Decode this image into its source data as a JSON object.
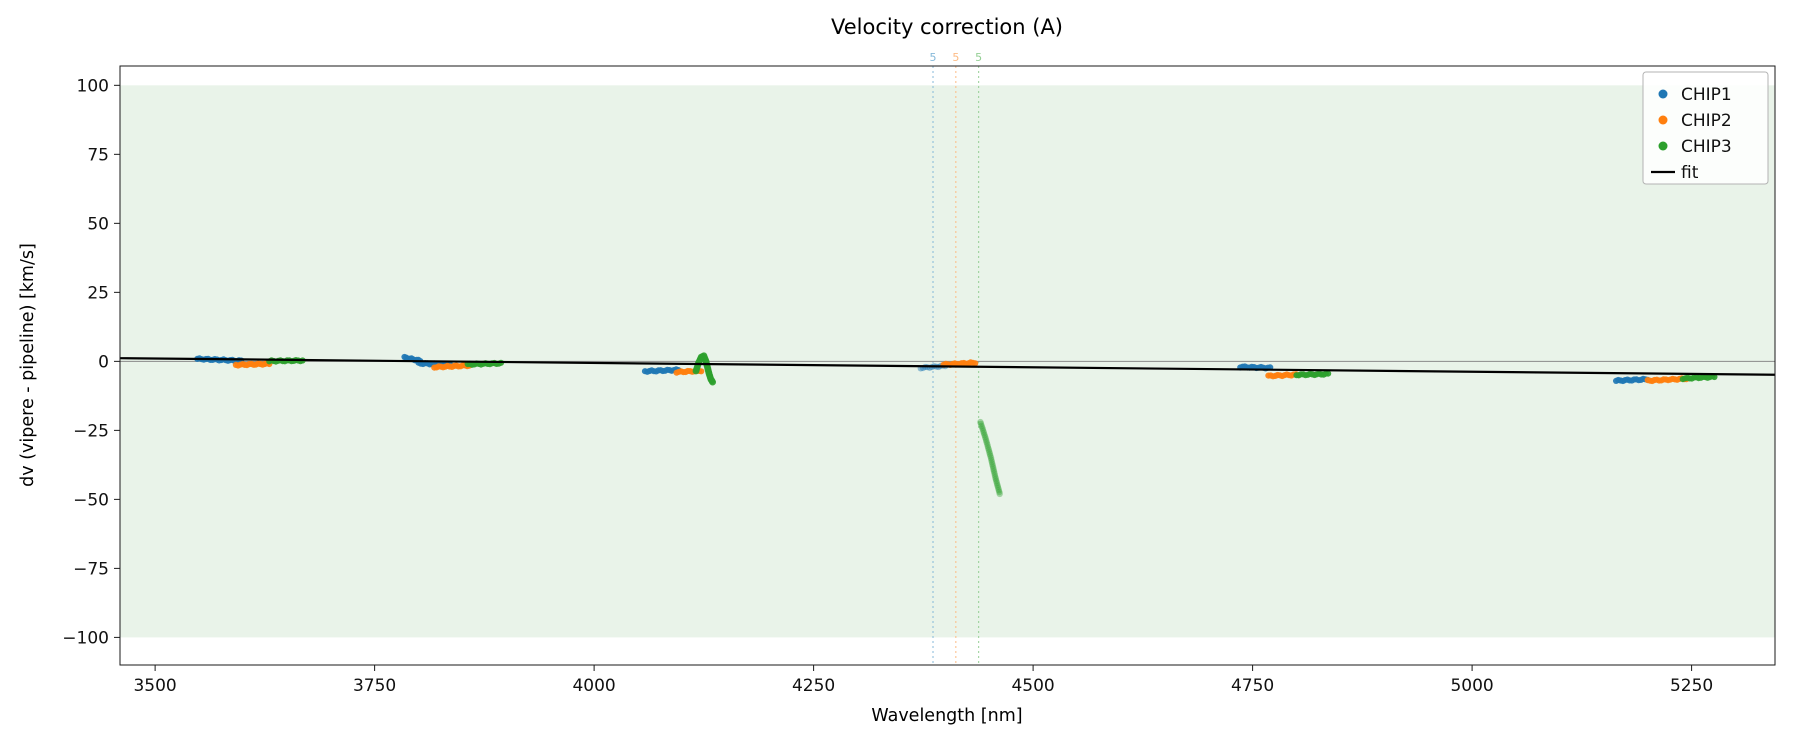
{
  "chart_data": {
    "type": "scatter",
    "title": "Velocity correction (A)",
    "xlabel": "Wavelength [nm]",
    "ylabel": "dv (vipere - pipeline) [km/s]",
    "xlim": [
      3460,
      5345
    ],
    "ylim": [
      -110,
      107
    ],
    "xticks": [
      3500,
      3750,
      4000,
      4250,
      4500,
      4750,
      5000,
      5250
    ],
    "yticks": [
      -100,
      -75,
      -50,
      -25,
      0,
      25,
      50,
      75,
      100
    ],
    "grid": false,
    "band": {
      "y": [
        -100,
        100
      ],
      "color": "#e9f3e9"
    },
    "zero_line": {
      "y": 0,
      "color": "#8a8a8a"
    },
    "vlines": [
      {
        "x": 4386,
        "label": "5",
        "color": "#86b9d9"
      },
      {
        "x": 4412,
        "label": "5",
        "color": "#fdbb84"
      },
      {
        "x": 4438,
        "label": "5",
        "color": "#94cf94"
      }
    ],
    "fit": {
      "x": [
        3460,
        5345
      ],
      "y": [
        1.15,
        -4.85
      ],
      "color": "#000000"
    },
    "series": [
      {
        "name": "CHIP1",
        "color": "#1f77b4",
        "segments": [
          {
            "x": [
              3548,
              3598
            ],
            "y": [
              0.9,
              0.2
            ]
          },
          {
            "x": [
              3784,
              3802
            ],
            "y": [
              1.4,
              0.2
            ]
          },
          {
            "x": [
              3800,
              3836
            ],
            "y": [
              -0.7,
              -1.3
            ]
          },
          {
            "x": [
              4058,
              4096
            ],
            "y": [
              -3.6,
              -3.1
            ]
          },
          {
            "x": [
              4372,
              4400
            ],
            "y": [
              -2.4,
              -1.6
            ],
            "alpha": 0.45
          },
          {
            "x": [
              4736,
              4770
            ],
            "y": [
              -2.0,
              -2.4
            ]
          },
          {
            "x": [
              5164,
              5200
            ],
            "y": [
              -7.0,
              -6.5
            ]
          }
        ]
      },
      {
        "name": "CHIP2",
        "color": "#ff7f0e",
        "segments": [
          {
            "x": [
              3592,
              3630
            ],
            "y": [
              -1.3,
              -0.9
            ]
          },
          {
            "x": [
              3818,
              3858
            ],
            "y": [
              -2.1,
              -1.5
            ]
          },
          {
            "x": [
              4094,
              4122
            ],
            "y": [
              -3.9,
              -3.4
            ]
          },
          {
            "x": [
              4398,
              4434
            ],
            "y": [
              -1.2,
              -0.5
            ]
          },
          {
            "x": [
              4768,
              4802
            ],
            "y": [
              -5.3,
              -4.8
            ]
          },
          {
            "x": [
              5200,
              5244
            ],
            "y": [
              -7.0,
              -6.3
            ]
          }
        ]
      },
      {
        "name": "CHIP3",
        "color": "#2ca02c",
        "segments": [
          {
            "x": [
              3630,
              3668
            ],
            "y": [
              0.1,
              0.3
            ]
          },
          {
            "x": [
              3856,
              3894
            ],
            "y": [
              -1.1,
              -0.7
            ]
          },
          {
            "pts": [
              [
                4116,
                -3.5
              ],
              [
                4119,
                -0.5
              ],
              [
                4122,
                1.5
              ],
              [
                4125,
                2.0
              ],
              [
                4127,
                0.5
              ],
              [
                4129,
                -2.0
              ],
              [
                4131,
                -4.5
              ],
              [
                4133,
                -6.5
              ],
              [
                4135,
                -7.5
              ]
            ],
            "r": 3.4
          },
          {
            "pts": [
              [
                4440,
                -22
              ],
              [
                4446,
                -28
              ],
              [
                4452,
                -35
              ],
              [
                4457,
                -42
              ],
              [
                4462,
                -48
              ]
            ],
            "alpha": 0.38,
            "r": 3.2
          },
          {
            "x": [
              4800,
              4836
            ],
            "y": [
              -4.9,
              -4.6
            ]
          },
          {
            "x": [
              5240,
              5276
            ],
            "y": [
              -6.2,
              -5.6
            ]
          }
        ]
      }
    ],
    "legend": {
      "position": "upper right",
      "entries": [
        {
          "label": "CHIP1",
          "marker": "dot",
          "color": "#1f77b4"
        },
        {
          "label": "CHIP2",
          "marker": "dot",
          "color": "#ff7f0e"
        },
        {
          "label": "CHIP3",
          "marker": "dot",
          "color": "#2ca02c"
        },
        {
          "label": "fit",
          "marker": "line",
          "color": "#000000"
        }
      ]
    }
  }
}
